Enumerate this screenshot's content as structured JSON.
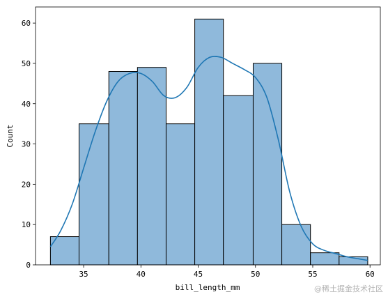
{
  "chart_data": {
    "type": "bar",
    "subtype": "histogram-with-kde",
    "xlabel": "bill_length_mm",
    "ylabel": "Count",
    "xlim": [
      30.8,
      60.9
    ],
    "ylim": [
      0,
      64
    ],
    "xticks": [
      35,
      40,
      45,
      50,
      55,
      60
    ],
    "yticks": [
      0,
      10,
      20,
      30,
      40,
      50,
      60
    ],
    "bins": [
      {
        "start": 32.1,
        "end": 34.6,
        "count": 7
      },
      {
        "start": 34.6,
        "end": 37.2,
        "count": 35
      },
      {
        "start": 37.2,
        "end": 39.7,
        "count": 48
      },
      {
        "start": 39.7,
        "end": 42.2,
        "count": 49
      },
      {
        "start": 42.2,
        "end": 44.7,
        "count": 35
      },
      {
        "start": 44.7,
        "end": 47.2,
        "count": 61
      },
      {
        "start": 47.2,
        "end": 49.8,
        "count": 42
      },
      {
        "start": 49.8,
        "end": 52.3,
        "count": 50
      },
      {
        "start": 52.3,
        "end": 54.8,
        "count": 10
      },
      {
        "start": 54.8,
        "end": 57.3,
        "count": 3
      },
      {
        "start": 57.3,
        "end": 59.8,
        "count": 2
      }
    ],
    "kde": {
      "x": [
        32.1,
        33.0,
        34.0,
        35.0,
        36.0,
        37.0,
        38.0,
        39.0,
        40.0,
        41.0,
        42.0,
        43.0,
        44.0,
        45.0,
        46.0,
        47.0,
        48.0,
        49.0,
        50.0,
        51.0,
        52.0,
        53.0,
        54.0,
        55.0,
        56.0,
        57.0,
        58.0,
        59.0,
        59.8
      ],
      "y": [
        4.5,
        8.5,
        15,
        24,
        33,
        40.5,
        45.5,
        47.5,
        47.5,
        45.5,
        42,
        41.5,
        44,
        49,
        51.5,
        51.5,
        50,
        48.5,
        46.5,
        41.5,
        31,
        18,
        9.5,
        5.2,
        3.6,
        2.8,
        2.0,
        1.5,
        1.1
      ]
    },
    "grid": false,
    "colors": {
      "bar_fill": "#8fb9db",
      "bar_edge": "#000000",
      "kde_line": "#1f77b4"
    }
  },
  "watermark": "@稀土掘金技术社区"
}
